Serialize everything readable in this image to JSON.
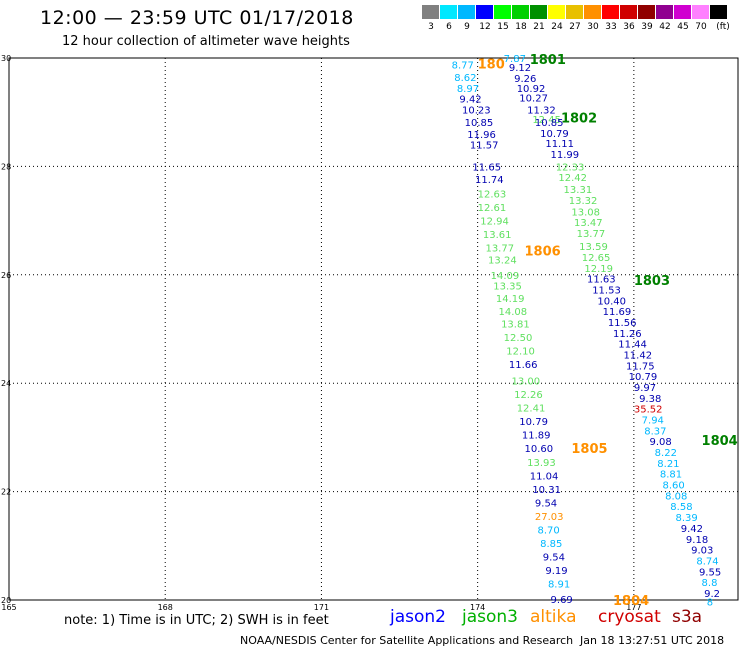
{
  "header": {
    "title": "12:00 — 23:59 UTC 01/17/2018",
    "subtitle": "12 hour collection of altimeter wave heights"
  },
  "colorbar": {
    "colors": [
      "#808080",
      "#00e8ff",
      "#00b8ff",
      "#0000ff",
      "#00ff00",
      "#00d000",
      "#009000",
      "#ffff00",
      "#e8c000",
      "#ff9000",
      "#ff0000",
      "#d00000",
      "#900000",
      "#900090",
      "#d000d0",
      "#ff80ff",
      "#000000"
    ],
    "labels": [
      "3",
      "6",
      "9",
      "12",
      "15",
      "18",
      "21",
      "24",
      "27",
      "30",
      "33",
      "36",
      "39",
      "42",
      "45",
      "70",
      "(ft)"
    ]
  },
  "axes": {
    "lon_ticks": [
      "165",
      "168",
      "171",
      "174",
      "177"
    ],
    "lat_ticks": [
      "30",
      "28",
      "26",
      "24",
      "22",
      "20"
    ]
  },
  "tracks": [
    {
      "id": "1801",
      "color": "#008000",
      "lon": 175.0,
      "lat": 29.98
    },
    {
      "id": "1802",
      "color": "#008000",
      "lon": 175.6,
      "lat": 28.9
    },
    {
      "id": "1803",
      "color": "#008000",
      "lon": 177.0,
      "lat": 25.9
    },
    {
      "id": "1804",
      "color": "#008000",
      "lon": 178.3,
      "lat": 22.95
    },
    {
      "id": "1804",
      "color": "#ff9000",
      "lon": 176.6,
      "lat": 20.0
    },
    {
      "id": "1805",
      "color": "#ff9000",
      "lon": 175.8,
      "lat": 22.8
    },
    {
      "id": "1806",
      "color": "#ff9000",
      "lon": 174.9,
      "lat": 26.45
    },
    {
      "id": "180",
      "color": "#ff9000",
      "lon": 174.0,
      "lat": 29.9
    }
  ],
  "observations": [
    {
      "v": "7.87",
      "c": "#00b8ff",
      "lon": 174.5,
      "lat": 30.0
    },
    {
      "v": "8.77",
      "c": "#00b8ff",
      "lon": 173.5,
      "lat": 29.88
    },
    {
      "v": "9.12",
      "c": "#0000b0",
      "lon": 174.6,
      "lat": 29.83
    },
    {
      "v": "8.62",
      "c": "#00b8ff",
      "lon": 173.55,
      "lat": 29.65
    },
    {
      "v": "9.26",
      "c": "#0000b0",
      "lon": 174.7,
      "lat": 29.63
    },
    {
      "v": "8.97",
      "c": "#00b8ff",
      "lon": 173.6,
      "lat": 29.45
    },
    {
      "v": "10.92",
      "c": "#0000b0",
      "lon": 174.75,
      "lat": 29.45
    },
    {
      "v": "9.42",
      "c": "#0000b0",
      "lon": 173.65,
      "lat": 29.25
    },
    {
      "v": "10.27",
      "c": "#0000b0",
      "lon": 174.8,
      "lat": 29.27
    },
    {
      "v": "11.32",
      "c": "#0000b0",
      "lon": 174.95,
      "lat": 29.05
    },
    {
      "v": "10.23",
      "c": "#0000b0",
      "lon": 173.7,
      "lat": 29.05
    },
    {
      "v": "12.45",
      "c": "#60e060",
      "lon": 175.05,
      "lat": 28.87
    },
    {
      "v": "10.85",
      "c": "#0000b0",
      "lon": 173.75,
      "lat": 28.82
    },
    {
      "v": "10.85",
      "c": "#0000b0",
      "lon": 175.1,
      "lat": 28.82
    },
    {
      "v": "10.79",
      "c": "#0000b0",
      "lon": 175.2,
      "lat": 28.62
    },
    {
      "v": "11.96",
      "c": "#0000b0",
      "lon": 173.8,
      "lat": 28.6
    },
    {
      "v": "11.11",
      "c": "#0000b0",
      "lon": 175.3,
      "lat": 28.43
    },
    {
      "v": "11.57",
      "c": "#0000b0",
      "lon": 173.85,
      "lat": 28.4
    },
    {
      "v": "11.99",
      "c": "#0000b0",
      "lon": 175.4,
      "lat": 28.23
    },
    {
      "v": "11.65",
      "c": "#0000b0",
      "lon": 173.9,
      "lat": 28.0
    },
    {
      "v": "12.33",
      "c": "#60e060",
      "lon": 175.5,
      "lat": 28.0
    },
    {
      "v": "11.74",
      "c": "#0000b0",
      "lon": 173.95,
      "lat": 27.77
    },
    {
      "v": "12.42",
      "c": "#60e060",
      "lon": 175.55,
      "lat": 27.8
    },
    {
      "v": "12.63",
      "c": "#60e060",
      "lon": 174.0,
      "lat": 27.5
    },
    {
      "v": "13.31",
      "c": "#60e060",
      "lon": 175.65,
      "lat": 27.58
    },
    {
      "v": "13.32",
      "c": "#60e060",
      "lon": 175.75,
      "lat": 27.38
    },
    {
      "v": "12.61",
      "c": "#60e060",
      "lon": 174.0,
      "lat": 27.25
    },
    {
      "v": "13.08",
      "c": "#60e060",
      "lon": 175.8,
      "lat": 27.17
    },
    {
      "v": "12.94",
      "c": "#60e060",
      "lon": 174.05,
      "lat": 27.0
    },
    {
      "v": "13.47",
      "c": "#60e060",
      "lon": 175.85,
      "lat": 26.97
    },
    {
      "v": "13.61",
      "c": "#60e060",
      "lon": 174.1,
      "lat": 26.75
    },
    {
      "v": "13.77",
      "c": "#60e060",
      "lon": 175.9,
      "lat": 26.77
    },
    {
      "v": "13.77",
      "c": "#60e060",
      "lon": 174.15,
      "lat": 26.5
    },
    {
      "v": "13.59",
      "c": "#60e060",
      "lon": 175.95,
      "lat": 26.53
    },
    {
      "v": "13.24",
      "c": "#60e060",
      "lon": 174.2,
      "lat": 26.28
    },
    {
      "v": "12.65",
      "c": "#60e060",
      "lon": 176.0,
      "lat": 26.33
    },
    {
      "v": "12.19",
      "c": "#60e060",
      "lon": 176.05,
      "lat": 26.13
    },
    {
      "v": "14.09",
      "c": "#60e060",
      "lon": 174.25,
      "lat": 26.0
    },
    {
      "v": "11.63",
      "c": "#0000b0",
      "lon": 176.1,
      "lat": 25.93
    },
    {
      "v": "13.35",
      "c": "#60e060",
      "lon": 174.3,
      "lat": 25.8
    },
    {
      "v": "11.53",
      "c": "#0000b0",
      "lon": 176.2,
      "lat": 25.73
    },
    {
      "v": "14.19",
      "c": "#60e060",
      "lon": 174.35,
      "lat": 25.57
    },
    {
      "v": "10.40",
      "c": "#0000b0",
      "lon": 176.3,
      "lat": 25.53
    },
    {
      "v": "14.08",
      "c": "#60e060",
      "lon": 174.4,
      "lat": 25.33
    },
    {
      "v": "11.69",
      "c": "#0000b0",
      "lon": 176.4,
      "lat": 25.33
    },
    {
      "v": "13.81",
      "c": "#60e060",
      "lon": 174.45,
      "lat": 25.1
    },
    {
      "v": "11.56",
      "c": "#0000b0",
      "lon": 176.5,
      "lat": 25.13
    },
    {
      "v": "11.26",
      "c": "#0000b0",
      "lon": 176.6,
      "lat": 24.93
    },
    {
      "v": "12.50",
      "c": "#60e060",
      "lon": 174.5,
      "lat": 24.85
    },
    {
      "v": "11.44",
      "c": "#0000b0",
      "lon": 176.7,
      "lat": 24.73
    },
    {
      "v": "12.10",
      "c": "#60e060",
      "lon": 174.55,
      "lat": 24.6
    },
    {
      "v": "11.42",
      "c": "#0000b0",
      "lon": 176.8,
      "lat": 24.53
    },
    {
      "v": "11.75",
      "c": "#0000b0",
      "lon": 176.85,
      "lat": 24.33
    },
    {
      "v": "11.66",
      "c": "#0000b0",
      "lon": 174.6,
      "lat": 24.35
    },
    {
      "v": "10.79",
      "c": "#0000b0",
      "lon": 176.9,
      "lat": 24.13
    },
    {
      "v": "13.00",
      "c": "#60e060",
      "lon": 174.65,
      "lat": 24.05
    },
    {
      "v": "9.97",
      "c": "#0000b0",
      "lon": 177.0,
      "lat": 23.93
    },
    {
      "v": "12.26",
      "c": "#60e060",
      "lon": 174.7,
      "lat": 23.8
    },
    {
      "v": "9.38",
      "c": "#0000b0",
      "lon": 177.1,
      "lat": 23.73
    },
    {
      "v": "35.52",
      "c": "#d00000",
      "lon": 177.0,
      "lat": 23.53
    },
    {
      "v": "12.41",
      "c": "#60e060",
      "lon": 174.75,
      "lat": 23.55
    },
    {
      "v": "7.94",
      "c": "#00b8ff",
      "lon": 177.15,
      "lat": 23.33
    },
    {
      "v": "10.79",
      "c": "#0000b0",
      "lon": 174.8,
      "lat": 23.3
    },
    {
      "v": "8.37",
      "c": "#00b8ff",
      "lon": 177.2,
      "lat": 23.13
    },
    {
      "v": "11.89",
      "c": "#0000b0",
      "lon": 174.85,
      "lat": 23.05
    },
    {
      "v": "9.08",
      "c": "#0000b0",
      "lon": 177.3,
      "lat": 22.93
    },
    {
      "v": "10.60",
      "c": "#0000b0",
      "lon": 174.9,
      "lat": 22.8
    },
    {
      "v": "8.22",
      "c": "#00b8ff",
      "lon": 177.4,
      "lat": 22.73
    },
    {
      "v": "13.93",
      "c": "#60e060",
      "lon": 174.95,
      "lat": 22.55
    },
    {
      "v": "8.21",
      "c": "#00b8ff",
      "lon": 177.45,
      "lat": 22.53
    },
    {
      "v": "8.81",
      "c": "#00b8ff",
      "lon": 177.5,
      "lat": 22.33
    },
    {
      "v": "11.04",
      "c": "#0000b0",
      "lon": 175.0,
      "lat": 22.3
    },
    {
      "v": "8.60",
      "c": "#00b8ff",
      "lon": 177.55,
      "lat": 22.13
    },
    {
      "v": "10.31",
      "c": "#0000b0",
      "lon": 175.05,
      "lat": 22.05
    },
    {
      "v": "8.08",
      "c": "#00b8ff",
      "lon": 177.6,
      "lat": 21.93
    },
    {
      "v": "9.54",
      "c": "#0000b0",
      "lon": 175.1,
      "lat": 21.8
    },
    {
      "v": "8.58",
      "c": "#00b8ff",
      "lon": 177.7,
      "lat": 21.73
    },
    {
      "v": "8.39",
      "c": "#00b8ff",
      "lon": 177.8,
      "lat": 21.53
    },
    {
      "v": "27.03",
      "c": "#ff9000",
      "lon": 175.1,
      "lat": 21.55
    },
    {
      "v": "9.42",
      "c": "#0000b0",
      "lon": 177.9,
      "lat": 21.33
    },
    {
      "v": "8.70",
      "c": "#00b8ff",
      "lon": 175.15,
      "lat": 21.3
    },
    {
      "v": "9.18",
      "c": "#0000b0",
      "lon": 178.0,
      "lat": 21.13
    },
    {
      "v": "8.85",
      "c": "#00b8ff",
      "lon": 175.2,
      "lat": 21.05
    },
    {
      "v": "9.03",
      "c": "#0000b0",
      "lon": 178.1,
      "lat": 20.93
    },
    {
      "v": "9.54",
      "c": "#0000b0",
      "lon": 175.25,
      "lat": 20.8
    },
    {
      "v": "8.74",
      "c": "#00b8ff",
      "lon": 178.2,
      "lat": 20.73
    },
    {
      "v": "9.19",
      "c": "#0000b0",
      "lon": 175.3,
      "lat": 20.55
    },
    {
      "v": "9.55",
      "c": "#0000b0",
      "lon": 178.25,
      "lat": 20.53
    },
    {
      "v": "8.91",
      "c": "#00b8ff",
      "lon": 175.35,
      "lat": 20.3
    },
    {
      "v": "8.8",
      "c": "#00b8ff",
      "lon": 178.3,
      "lat": 20.33
    },
    {
      "v": "9.2",
      "c": "#0000b0",
      "lon": 178.35,
      "lat": 20.13
    },
    {
      "v": "9.69",
      "c": "#0000b0",
      "lon": 175.4,
      "lat": 20.02
    },
    {
      "v": "8",
      "c": "#00b8ff",
      "lon": 178.4,
      "lat": 19.97
    }
  ],
  "footer": {
    "note": "note:  1) Time is in UTC;  2) SWH is in feet",
    "satellites": [
      {
        "name": "jason2",
        "color": "#0000ff"
      },
      {
        "name": "jason3",
        "color": "#00b000"
      },
      {
        "name": "altika",
        "color": "#ff9000"
      },
      {
        "name": "cryosat",
        "color": "#d00000"
      },
      {
        "name": "s3a",
        "color": "#900000"
      }
    ],
    "credit": "NOAA/NESDIS Center for Satellite Applications and Research",
    "timestamp": "Jan 18 13:27:51 UTC 2018"
  }
}
